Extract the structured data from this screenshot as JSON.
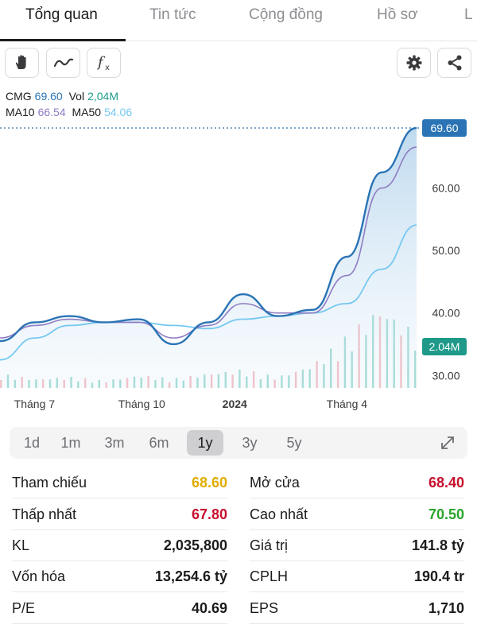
{
  "tabs": [
    {
      "label": "Tổng quan",
      "active": true
    },
    {
      "label": "Tin tức",
      "active": false
    },
    {
      "label": "Cộng đồng",
      "active": false
    },
    {
      "label": "Hồ sơ",
      "active": false
    },
    {
      "label": "L",
      "active": false
    }
  ],
  "toolbar": {
    "left_icons": [
      "hand-icon",
      "line-chart-icon",
      "function-icon"
    ],
    "right_icons": [
      "gear-icon",
      "share-icon"
    ],
    "fx_label": "fx"
  },
  "legend": {
    "ticker": "CMG",
    "price": "69.60",
    "vol_label": "Vol",
    "vol_value": "2,04M",
    "ma10_label": "MA10",
    "ma10_value": "66.54",
    "ma50_label": "MA50",
    "ma50_value": "54.06"
  },
  "colors": {
    "price_line": "#2a74b5",
    "ma10": "#8e7cc3",
    "ma50": "#76c8f0",
    "price_badge": "#2a74b5",
    "volume_badge": "#1f9a8a",
    "up": "#7fcfc3",
    "down": "#f2a7ae",
    "yellow": "#e0ad00",
    "red": "#c8102e",
    "green": "#2aa52a"
  },
  "chart_data": {
    "type": "line",
    "price_series": [
      {
        "name": "CMG",
        "x": [
          "2023-06",
          "2023-07",
          "2023-08",
          "2023-09",
          "2023-10",
          "2023-11",
          "2023-12",
          "2024-01",
          "2024-02",
          "2024-03",
          "2024-04",
          "2024-05",
          "2024-06"
        ],
        "values": [
          35.5,
          38.5,
          39.5,
          38.5,
          39.0,
          35.0,
          38.5,
          43.0,
          39.5,
          40.5,
          49.0,
          62.5,
          69.6
        ]
      },
      {
        "name": "MA10",
        "x": [
          "2023-06",
          "2023-07",
          "2023-08",
          "2023-09",
          "2023-10",
          "2023-11",
          "2023-12",
          "2024-01",
          "2024-02",
          "2024-03",
          "2024-04",
          "2024-05",
          "2024-06"
        ],
        "values": [
          36.0,
          38.0,
          39.0,
          38.5,
          38.5,
          36.0,
          38.0,
          41.5,
          40.0,
          40.0,
          46.0,
          60.0,
          66.54
        ]
      },
      {
        "name": "MA50",
        "x": [
          "2023-06",
          "2023-07",
          "2023-08",
          "2023-09",
          "2023-10",
          "2023-11",
          "2023-12",
          "2024-01",
          "2024-02",
          "2024-03",
          "2024-04",
          "2024-05",
          "2024-06"
        ],
        "values": [
          32.5,
          36.0,
          38.0,
          38.5,
          38.5,
          38.0,
          37.5,
          39.0,
          39.5,
          40.0,
          41.5,
          47.0,
          54.06
        ]
      }
    ],
    "y_ticks": [
      "60.00",
      "50.00",
      "40.00",
      "30.00"
    ],
    "y_tick_values": [
      60,
      50,
      40,
      30
    ],
    "ylim": [
      28,
      71
    ],
    "x_ticks": [
      "Tháng 7",
      "Tháng 10",
      "2024",
      "Tháng 4"
    ],
    "x_tick_positions": [
      "2023-07",
      "2023-10",
      "2024-01",
      "2024-04"
    ],
    "last_price_label": "69.60",
    "last_volume_label": "2.04M",
    "volume_relative": [
      0.15,
      0.1,
      0.12,
      0.08,
      0.14,
      0.1,
      0.16,
      0.2,
      0.12,
      0.25,
      0.55,
      0.9,
      0.6
    ],
    "grid": false
  },
  "periods": {
    "options": [
      "1d",
      "1m",
      "3m",
      "6m",
      "1y",
      "3y",
      "5y"
    ],
    "selected": "1y"
  },
  "stats": {
    "left": [
      {
        "label": "Tham chiếu",
        "value": "68.60",
        "color": "yellow"
      },
      {
        "label": "Thấp nhất",
        "value": "67.80",
        "color": "red"
      },
      {
        "label": "KL",
        "value": "2,035,800",
        "color": "black"
      },
      {
        "label": "Vốn hóa",
        "value": "13,254.6 tỷ",
        "color": "black"
      },
      {
        "label": "P/E",
        "value": "40.69",
        "color": "black"
      }
    ],
    "right": [
      {
        "label": "Mở cửa",
        "value": "68.40",
        "color": "red"
      },
      {
        "label": "Cao nhất",
        "value": "70.50",
        "color": "green"
      },
      {
        "label": "Giá trị",
        "value": "141.8 tỷ",
        "color": "black"
      },
      {
        "label": "CPLH",
        "value": "190.4 tr",
        "color": "black"
      },
      {
        "label": "EPS",
        "value": "1,710",
        "color": "black"
      }
    ]
  }
}
